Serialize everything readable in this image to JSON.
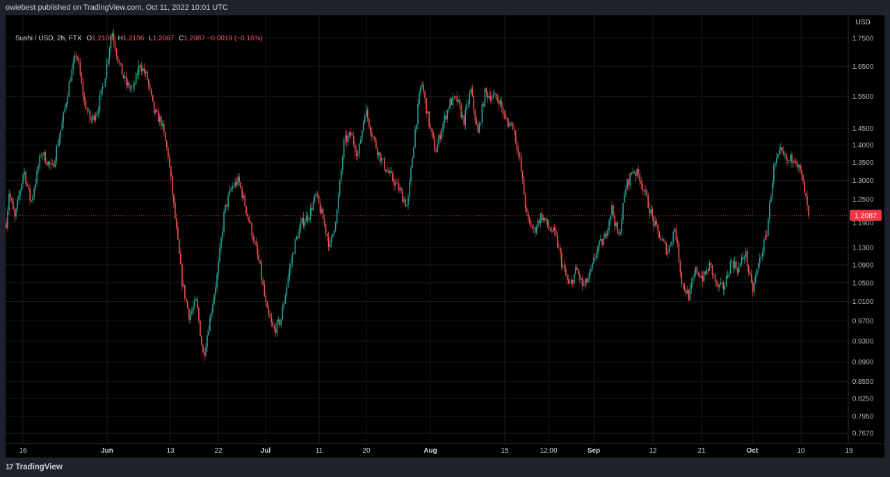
{
  "header": {
    "publisher_text": "owiebest published on TradingView.com, Oct 11, 2022 10:01 UTC"
  },
  "legend": {
    "symbol": "Sushi / USD, 2h, FTX",
    "open_label": "O",
    "open": "1.2106",
    "high_label": "H",
    "high": "1.2106",
    "low_label": "L",
    "low": "1.2067",
    "close_label": "C",
    "close": "1.2087",
    "change": "−0.0019 (−0.16%)"
  },
  "footer": {
    "brand": "TradingView"
  },
  "colors": {
    "up": "#26a69a",
    "down": "#ef5350",
    "background": "#000000",
    "price_tag": "#f23645",
    "grid": "#1a1a1a"
  },
  "chart_data": {
    "type": "candlestick",
    "currency_label": "USD",
    "y_scale": "log",
    "ylim": [
      0.755,
      1.83
    ],
    "y_ticks": [
      "1.7500",
      "1.6500",
      "1.5500",
      "1.4500",
      "1.4000",
      "1.3500",
      "1.3000",
      "1.2500",
      "1.1900",
      "1.1300",
      "1.0900",
      "1.0500",
      "1.0100",
      "0.9700",
      "0.9300",
      "0.8900",
      "0.8550",
      "0.8250",
      "0.7950",
      "0.7670"
    ],
    "x_ticks": [
      "16",
      "Jun",
      "13",
      "22",
      "Jul",
      "11",
      "20",
      "Aug",
      "15",
      "12:00",
      "Sep",
      "12",
      "21",
      "Oct",
      "10",
      "19"
    ],
    "last_price": "1.2087",
    "price_path": [
      {
        "x": 0,
        "y": 1.19
      },
      {
        "x": 0.4,
        "y": 1.27
      },
      {
        "x": 1.2,
        "y": 1.2
      },
      {
        "x": 2.5,
        "y": 1.33
      },
      {
        "x": 3.5,
        "y": 1.24
      },
      {
        "x": 5,
        "y": 1.38
      },
      {
        "x": 6.5,
        "y": 1.33
      },
      {
        "x": 8,
        "y": 1.47
      },
      {
        "x": 9,
        "y": 1.6
      },
      {
        "x": 10,
        "y": 1.7
      },
      {
        "x": 11,
        "y": 1.54
      },
      {
        "x": 12,
        "y": 1.47
      },
      {
        "x": 13,
        "y": 1.51
      },
      {
        "x": 14,
        "y": 1.61
      },
      {
        "x": 15,
        "y": 1.78
      },
      {
        "x": 16,
        "y": 1.66
      },
      {
        "x": 17,
        "y": 1.59
      },
      {
        "x": 18,
        "y": 1.57
      },
      {
        "x": 19,
        "y": 1.66
      },
      {
        "x": 20,
        "y": 1.61
      },
      {
        "x": 21,
        "y": 1.5
      },
      {
        "x": 22,
        "y": 1.47
      },
      {
        "x": 23,
        "y": 1.37
      },
      {
        "x": 24,
        "y": 1.2
      },
      {
        "x": 25,
        "y": 1.05
      },
      {
        "x": 26,
        "y": 0.98
      },
      {
        "x": 27,
        "y": 1.01
      },
      {
        "x": 28,
        "y": 0.9
      },
      {
        "x": 29,
        "y": 0.98
      },
      {
        "x": 30,
        "y": 1.07
      },
      {
        "x": 31,
        "y": 1.22
      },
      {
        "x": 32,
        "y": 1.28
      },
      {
        "x": 33,
        "y": 1.3
      },
      {
        "x": 34,
        "y": 1.23
      },
      {
        "x": 35,
        "y": 1.16
      },
      {
        "x": 36,
        "y": 1.09
      },
      {
        "x": 37,
        "y": 0.99
      },
      {
        "x": 38,
        "y": 0.95
      },
      {
        "x": 39,
        "y": 0.97
      },
      {
        "x": 40,
        "y": 1.06
      },
      {
        "x": 41,
        "y": 1.14
      },
      {
        "x": 42,
        "y": 1.19
      },
      {
        "x": 43,
        "y": 1.21
      },
      {
        "x": 44,
        "y": 1.26
      },
      {
        "x": 45,
        "y": 1.2
      },
      {
        "x": 46,
        "y": 1.13
      },
      {
        "x": 47,
        "y": 1.22
      },
      {
        "x": 48,
        "y": 1.41
      },
      {
        "x": 49,
        "y": 1.43
      },
      {
        "x": 50,
        "y": 1.37
      },
      {
        "x": 51,
        "y": 1.51
      },
      {
        "x": 52,
        "y": 1.43
      },
      {
        "x": 53,
        "y": 1.37
      },
      {
        "x": 54,
        "y": 1.33
      },
      {
        "x": 55,
        "y": 1.3
      },
      {
        "x": 56,
        "y": 1.27
      },
      {
        "x": 57,
        "y": 1.23
      },
      {
        "x": 58,
        "y": 1.43
      },
      {
        "x": 59,
        "y": 1.6
      },
      {
        "x": 60,
        "y": 1.47
      },
      {
        "x": 61,
        "y": 1.38
      },
      {
        "x": 62,
        "y": 1.46
      },
      {
        "x": 63,
        "y": 1.53
      },
      {
        "x": 64,
        "y": 1.54
      },
      {
        "x": 65,
        "y": 1.47
      },
      {
        "x": 66,
        "y": 1.57
      },
      {
        "x": 67,
        "y": 1.43
      },
      {
        "x": 68,
        "y": 1.56
      },
      {
        "x": 69,
        "y": 1.55
      },
      {
        "x": 70,
        "y": 1.54
      },
      {
        "x": 71,
        "y": 1.47
      },
      {
        "x": 72,
        "y": 1.46
      },
      {
        "x": 73,
        "y": 1.35
      },
      {
        "x": 74,
        "y": 1.2
      },
      {
        "x": 75,
        "y": 1.17
      },
      {
        "x": 76,
        "y": 1.21
      },
      {
        "x": 77,
        "y": 1.18
      },
      {
        "x": 78,
        "y": 1.16
      },
      {
        "x": 79,
        "y": 1.09
      },
      {
        "x": 80,
        "y": 1.04
      },
      {
        "x": 81,
        "y": 1.08
      },
      {
        "x": 82,
        "y": 1.04
      },
      {
        "x": 83,
        "y": 1.07
      },
      {
        "x": 84,
        "y": 1.13
      },
      {
        "x": 85,
        "y": 1.15
      },
      {
        "x": 86,
        "y": 1.23
      },
      {
        "x": 87,
        "y": 1.15
      },
      {
        "x": 88,
        "y": 1.28
      },
      {
        "x": 89,
        "y": 1.33
      },
      {
        "x": 90,
        "y": 1.31
      },
      {
        "x": 91,
        "y": 1.25
      },
      {
        "x": 92,
        "y": 1.19
      },
      {
        "x": 93,
        "y": 1.15
      },
      {
        "x": 94,
        "y": 1.12
      },
      {
        "x": 95,
        "y": 1.18
      },
      {
        "x": 96,
        "y": 1.05
      },
      {
        "x": 97,
        "y": 1.02
      },
      {
        "x": 98,
        "y": 1.08
      },
      {
        "x": 99,
        "y": 1.06
      },
      {
        "x": 100,
        "y": 1.09
      },
      {
        "x": 101,
        "y": 1.04
      },
      {
        "x": 102,
        "y": 1.04
      },
      {
        "x": 103,
        "y": 1.1
      },
      {
        "x": 104,
        "y": 1.08
      },
      {
        "x": 105,
        "y": 1.12
      },
      {
        "x": 106,
        "y": 1.03
      },
      {
        "x": 107,
        "y": 1.1
      },
      {
        "x": 108,
        "y": 1.16
      },
      {
        "x": 109,
        "y": 1.33
      },
      {
        "x": 110,
        "y": 1.38
      },
      {
        "x": 111,
        "y": 1.35
      },
      {
        "x": 112,
        "y": 1.37
      },
      {
        "x": 113,
        "y": 1.31
      },
      {
        "x": 114,
        "y": 1.2087
      }
    ]
  }
}
